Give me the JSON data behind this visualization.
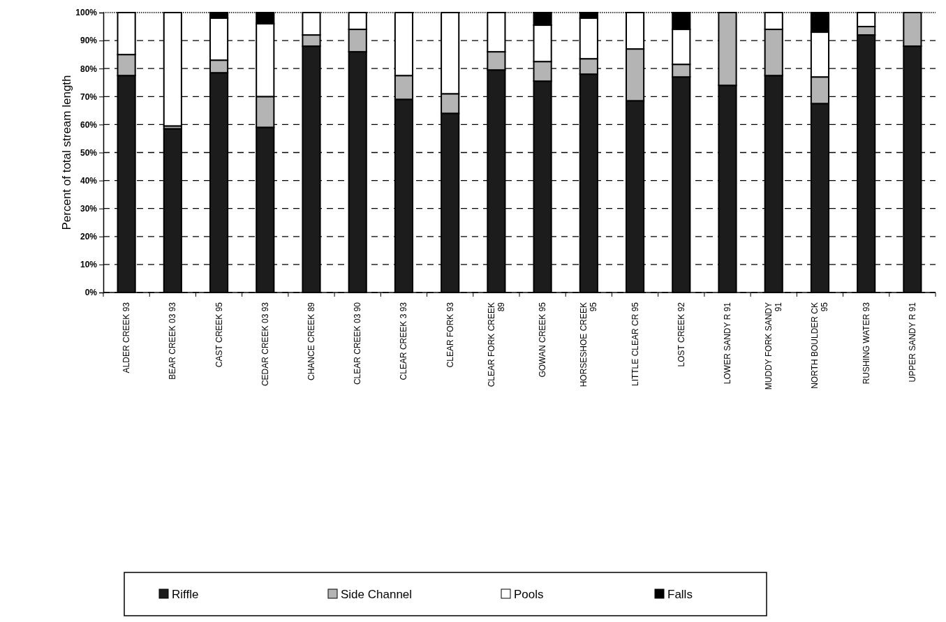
{
  "chart_data": {
    "type": "bar",
    "stacked": true,
    "ylabel": "Percent of total stream length",
    "categories": [
      "ALDER CREEK 93",
      "BEAR CREEK 03 93",
      "CAST CREEK 95",
      "CEDAR CREEK 03 93",
      "CHANCE CREEK 89",
      "CLEAR CREEK 03 90",
      "CLEAR CREEK 3 93",
      "CLEAR FORK 93",
      "CLEAR FORK CREEK 89",
      "GOWAN CREEK 95",
      "HORSESHOE CREEK 95",
      "LITTLE CLEAR CR 95",
      "LOST CREEK 92",
      "LOWER SANDY R 91",
      "MUDDY FORK SANDY 91",
      "NORTH BOULDER CK 95",
      "RUSHING WATER 93",
      "UPPER SANDY R 91"
    ],
    "series": [
      {
        "name": "Riffle",
        "color": "#1c1c1c",
        "values": [
          77.5,
          58.5,
          78.5,
          59,
          88,
          86,
          69,
          64,
          79.5,
          75.5,
          78,
          68.5,
          77,
          74,
          77.5,
          67.5,
          92,
          88
        ]
      },
      {
        "name": "Side Channel",
        "color": "#b4b4b4",
        "values": [
          7.5,
          1,
          4.5,
          11,
          4,
          8,
          8.5,
          7,
          6.5,
          7,
          5.5,
          18.5,
          4.5,
          26,
          16.5,
          9.5,
          3,
          12
        ]
      },
      {
        "name": "Pools",
        "color": "#ffffff",
        "values": [
          15,
          40.5,
          15,
          26,
          8,
          6,
          22.5,
          29,
          14,
          13,
          14.5,
          13,
          12.5,
          0,
          6,
          16,
          5,
          0
        ]
      },
      {
        "name": "Falls",
        "color": "#000000",
        "values": [
          0,
          0,
          2,
          4,
          0,
          0,
          0,
          0,
          0,
          4.5,
          2,
          0,
          6,
          0,
          0,
          7,
          0,
          0
        ]
      }
    ],
    "ylim": [
      0,
      100
    ],
    "yticks": [
      {
        "value": 0,
        "label": "0%"
      },
      {
        "value": 10,
        "label": "10%"
      },
      {
        "value": 20,
        "label": "20%"
      },
      {
        "value": 30,
        "label": "30%"
      },
      {
        "value": 40,
        "label": "40%"
      },
      {
        "value": 50,
        "label": "50%"
      },
      {
        "value": 60,
        "label": "60%"
      },
      {
        "value": 70,
        "label": "70%"
      },
      {
        "value": 80,
        "label": "80%"
      },
      {
        "value": 90,
        "label": "90%"
      },
      {
        "value": 100,
        "label": "100%"
      }
    ],
    "grid": "y",
    "legend": "bottom"
  }
}
